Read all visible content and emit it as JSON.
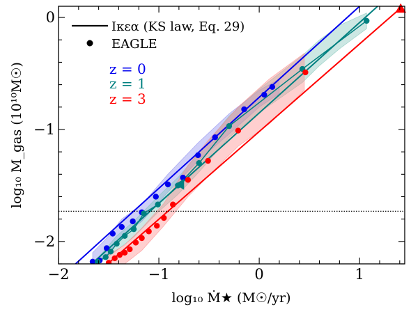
{
  "chart_data": {
    "type": "scatter",
    "xlabel": "log₁₀ Ṁ★ (M☉/yr)",
    "ylabel": "log₁₀ M_gas (10¹⁰M☉)",
    "xlim": [
      -2.0,
      1.45
    ],
    "ylim": [
      -2.2,
      0.1
    ],
    "xticks": [
      -2,
      -1,
      0,
      1
    ],
    "xtick_labels": [
      "−2",
      "−1",
      "0",
      "1"
    ],
    "yticks": [
      0,
      -1,
      -2
    ],
    "ytick_labels": [
      "0",
      "−1",
      "−2"
    ],
    "legend": [
      {
        "label": "Iκεα (KS law, Eq. 29)",
        "marker": "line"
      },
      {
        "label": "EAGLE",
        "marker": "dot"
      }
    ],
    "legend_position": "top-left",
    "redshift_labels": [
      {
        "label": "z = 0",
        "color": "#0000ee"
      },
      {
        "label": "z = 1",
        "color": "#008080"
      },
      {
        "label": "z = 3",
        "color": "#ff0000"
      }
    ],
    "hline": {
      "y": -1.73,
      "style": "dotted"
    },
    "series": [
      {
        "name": "z = 0",
        "color": "#0000ee",
        "shade": "#8888ee",
        "line": {
          "x": [
            -1.83,
            1.0
          ],
          "y": [
            -2.2,
            0.1
          ]
        },
        "points": [
          {
            "x": -1.66,
            "y": -2.18
          },
          {
            "x": -1.59,
            "y": -2.17
          },
          {
            "x": -1.52,
            "y": -2.06
          },
          {
            "x": -1.46,
            "y": -1.93
          },
          {
            "x": -1.37,
            "y": -1.87
          },
          {
            "x": -1.26,
            "y": -1.82
          },
          {
            "x": -1.17,
            "y": -1.74
          },
          {
            "x": -1.03,
            "y": -1.6
          },
          {
            "x": -0.91,
            "y": -1.49
          },
          {
            "x": -0.76,
            "y": -1.43
          },
          {
            "x": -0.61,
            "y": -1.23
          },
          {
            "x": -0.44,
            "y": -1.07
          },
          {
            "x": -0.15,
            "y": -0.82
          },
          {
            "x": 0.05,
            "y": -0.69
          },
          {
            "x": 0.13,
            "y": -0.62
          }
        ],
        "band": {
          "x": [
            -1.66,
            -1.52,
            -1.37,
            -1.17,
            -0.91,
            -0.61,
            -0.3,
            0.0,
            0.2
          ],
          "upper": [
            -2.1,
            -1.97,
            -1.8,
            -1.67,
            -1.4,
            -1.12,
            -0.86,
            -0.65,
            -0.55
          ],
          "lower": [
            -2.2,
            -2.12,
            -1.95,
            -1.82,
            -1.56,
            -1.28,
            -1.04,
            -0.8,
            -0.68
          ]
        }
      },
      {
        "name": "z = 1",
        "color": "#008080",
        "shade": "#7fc4b8",
        "line": {
          "x": [
            -1.67,
            1.18
          ],
          "y": [
            -2.2,
            0.1
          ]
        },
        "points": [
          {
            "x": -1.61,
            "y": -2.18
          },
          {
            "x": -1.53,
            "y": -2.14
          },
          {
            "x": -1.48,
            "y": -2.09
          },
          {
            "x": -1.42,
            "y": -2.02
          },
          {
            "x": -1.34,
            "y": -1.95
          },
          {
            "x": -1.25,
            "y": -1.89
          },
          {
            "x": -1.15,
            "y": -1.75
          },
          {
            "x": -1.01,
            "y": -1.67
          },
          {
            "x": -0.81,
            "y": -1.5
          },
          {
            "x": -0.6,
            "y": -1.3
          },
          {
            "x": -0.3,
            "y": -0.97
          },
          {
            "x": 0.43,
            "y": -0.46
          },
          {
            "x": 1.07,
            "y": -0.03
          }
        ],
        "band": {
          "x": [
            -1.61,
            -1.42,
            -1.25,
            -1.01,
            -0.81,
            -0.6,
            -0.3,
            0.0,
            0.43,
            0.6,
            0.8,
            1.07
          ],
          "upper": [
            -2.15,
            -1.95,
            -1.82,
            -1.6,
            -1.43,
            -1.21,
            -0.88,
            -0.64,
            -0.34,
            -0.2,
            -0.07,
            0.04
          ],
          "lower": [
            -2.2,
            -2.08,
            -1.96,
            -1.74,
            -1.58,
            -1.38,
            -1.07,
            -0.85,
            -0.58,
            -0.43,
            -0.28,
            -0.1
          ]
        },
        "marker_triangle": {
          "x": -0.78,
          "y": -1.49,
          "rotation": 270
        }
      },
      {
        "name": "z = 3",
        "color": "#ff0000",
        "shade": "#ff8888",
        "line": {
          "x": [
            -1.51,
            1.43
          ],
          "y": [
            -2.2,
            0.1
          ]
        },
        "points": [
          {
            "x": -1.5,
            "y": -2.19
          },
          {
            "x": -1.44,
            "y": -2.15
          },
          {
            "x": -1.39,
            "y": -2.12
          },
          {
            "x": -1.34,
            "y": -2.1
          },
          {
            "x": -1.29,
            "y": -2.07
          },
          {
            "x": -1.23,
            "y": -2.01
          },
          {
            "x": -1.17,
            "y": -1.97
          },
          {
            "x": -1.1,
            "y": -1.91
          },
          {
            "x": -1.02,
            "y": -1.86
          },
          {
            "x": -0.95,
            "y": -1.79
          },
          {
            "x": -0.86,
            "y": -1.67
          },
          {
            "x": -0.71,
            "y": -1.45
          },
          {
            "x": -0.51,
            "y": -1.28
          },
          {
            "x": -0.21,
            "y": -1.01
          },
          {
            "x": 0.46,
            "y": -0.49
          }
        ],
        "band": {
          "x": [
            -1.5,
            -1.34,
            -1.17,
            -0.95,
            -0.71,
            -0.51,
            -0.21,
            0.1,
            0.45
          ],
          "upper": [
            -2.12,
            -2.03,
            -1.88,
            -1.66,
            -1.32,
            -1.1,
            -0.8,
            -0.55,
            -0.32
          ],
          "lower": [
            -2.2,
            -2.2,
            -2.08,
            -1.86,
            -1.6,
            -1.42,
            -1.15,
            -0.95,
            -0.65
          ]
        },
        "marker_triangle": {
          "x": 1.41,
          "y": 0.07,
          "rotation": 0
        }
      }
    ]
  }
}
